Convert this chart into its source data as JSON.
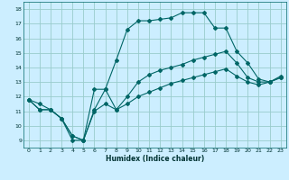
{
  "xlabel": "Humidex (Indice chaleur)",
  "bg_color": "#cceeff",
  "grid_color": "#99cccc",
  "line_color": "#006666",
  "xlim": [
    -0.5,
    23.5
  ],
  "ylim": [
    8.5,
    18.5
  ],
  "xticks": [
    0,
    1,
    2,
    3,
    4,
    5,
    6,
    7,
    8,
    9,
    10,
    11,
    12,
    13,
    14,
    15,
    16,
    17,
    18,
    19,
    20,
    21,
    22,
    23
  ],
  "yticks": [
    9,
    10,
    11,
    12,
    13,
    14,
    15,
    16,
    17,
    18
  ],
  "line1_x": [
    0,
    1,
    2,
    3,
    4,
    5,
    6,
    7,
    8,
    9,
    10,
    11,
    12,
    13,
    14,
    15,
    16,
    17,
    18,
    19,
    20,
    21,
    22,
    23
  ],
  "line1_y": [
    11.8,
    11.5,
    11.1,
    10.5,
    9.0,
    9.0,
    12.5,
    12.5,
    14.5,
    16.6,
    17.2,
    17.2,
    17.3,
    17.4,
    17.75,
    17.75,
    17.75,
    16.7,
    16.7,
    15.1,
    14.3,
    13.2,
    13.0,
    13.4
  ],
  "line2_x": [
    0,
    1,
    2,
    3,
    4,
    5,
    6,
    7,
    8,
    9,
    10,
    11,
    12,
    13,
    14,
    15,
    16,
    17,
    18,
    19,
    20,
    21,
    22,
    23
  ],
  "line2_y": [
    11.8,
    11.1,
    11.1,
    10.5,
    9.3,
    9.0,
    11.1,
    12.5,
    11.1,
    12.0,
    13.0,
    13.5,
    13.8,
    14.0,
    14.2,
    14.5,
    14.7,
    14.9,
    15.1,
    14.3,
    13.3,
    13.0,
    13.0,
    13.3
  ],
  "line3_x": [
    0,
    1,
    2,
    3,
    4,
    5,
    6,
    7,
    8,
    9,
    10,
    11,
    12,
    13,
    14,
    15,
    16,
    17,
    18,
    19,
    20,
    21,
    22,
    23
  ],
  "line3_y": [
    11.8,
    11.1,
    11.1,
    10.5,
    9.3,
    9.0,
    11.0,
    11.5,
    11.1,
    11.5,
    12.0,
    12.3,
    12.6,
    12.9,
    13.1,
    13.3,
    13.5,
    13.7,
    13.9,
    13.4,
    13.0,
    12.8,
    13.0,
    13.3
  ]
}
